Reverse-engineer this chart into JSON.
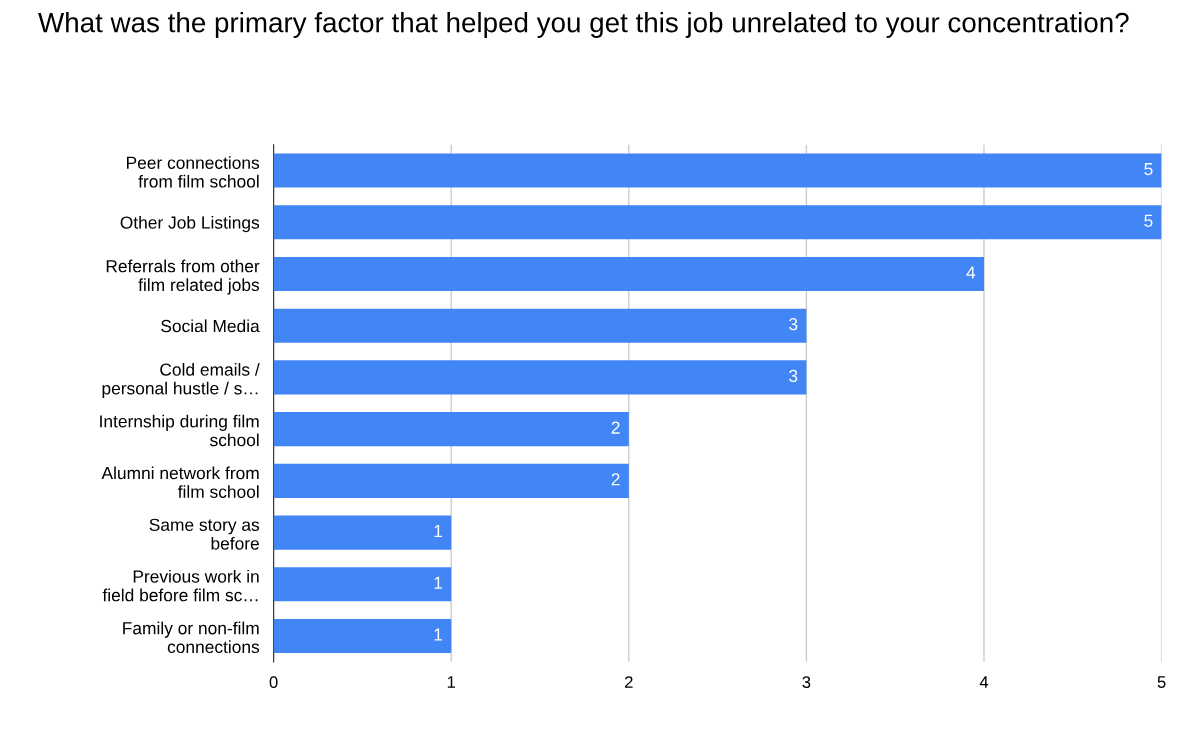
{
  "chart_data": {
    "type": "bar",
    "orientation": "horizontal",
    "title": "What was the primary factor that helped you get this job unrelated to your concentration?",
    "categories": [
      "Peer connections\nfrom film school",
      "Other Job Listings",
      "Referrals from other\nfilm related jobs",
      "Social Media",
      "Cold emails /\npersonal hustle / s…",
      "Internship during film\nschool",
      "Alumni network from\nfilm school",
      "Same story as\nbefore",
      "Previous work in\nfield before film sc…",
      "Family or non-film\nconnections"
    ],
    "values": [
      5,
      5,
      4,
      3,
      3,
      2,
      2,
      1,
      1,
      1
    ],
    "color": "#4285f4",
    "xlim": [
      0,
      5
    ],
    "xticks": [
      0,
      1,
      2,
      3,
      4,
      5
    ],
    "grid": "x",
    "data_labels": true
  }
}
